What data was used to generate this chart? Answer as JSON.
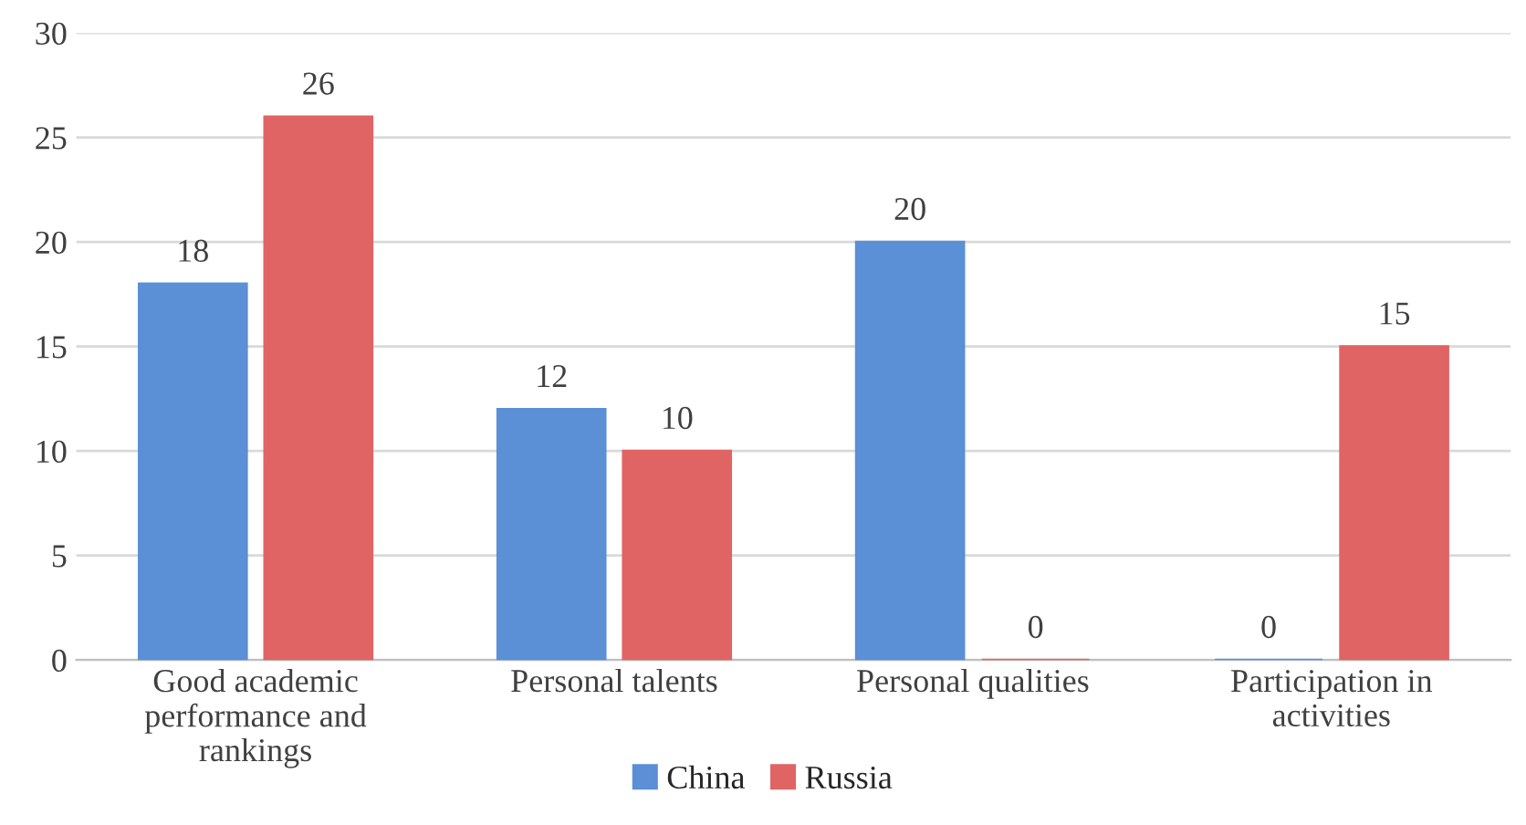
{
  "chart_data": {
    "type": "bar",
    "categories": [
      "Good academic\nperformance and\nrankings",
      "Personal talents",
      "Personal qualities",
      "Participation in\nactivities"
    ],
    "series": [
      {
        "name": "China",
        "color": "#5b8fd6",
        "values": [
          18,
          12,
          20,
          0
        ]
      },
      {
        "name": "Russia",
        "color": "#e06464",
        "values": [
          26,
          10,
          0,
          15
        ]
      }
    ],
    "ylim": [
      0,
      30
    ],
    "yticks": [
      0,
      5,
      10,
      15,
      20,
      25,
      30
    ],
    "grid": "y",
    "legend": "bottom",
    "data_labels": true
  }
}
